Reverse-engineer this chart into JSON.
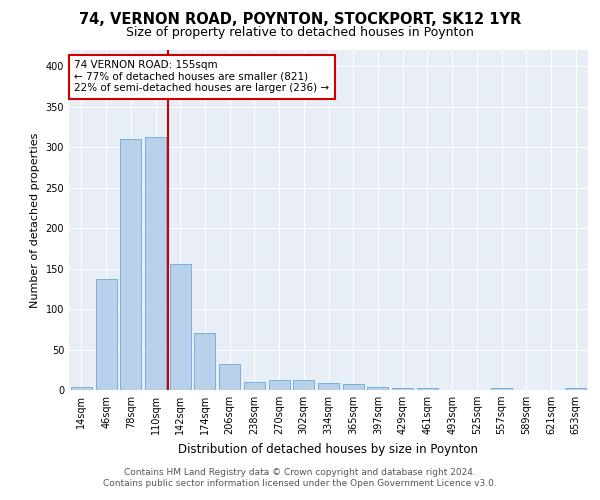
{
  "title1": "74, VERNON ROAD, POYNTON, STOCKPORT, SK12 1YR",
  "title2": "Size of property relative to detached houses in Poynton",
  "xlabel": "Distribution of detached houses by size in Poynton",
  "ylabel": "Number of detached properties",
  "categories": [
    "14sqm",
    "46sqm",
    "78sqm",
    "110sqm",
    "142sqm",
    "174sqm",
    "206sqm",
    "238sqm",
    "270sqm",
    "302sqm",
    "334sqm",
    "365sqm",
    "397sqm",
    "429sqm",
    "461sqm",
    "493sqm",
    "525sqm",
    "557sqm",
    "589sqm",
    "621sqm",
    "653sqm"
  ],
  "values": [
    4,
    137,
    310,
    313,
    156,
    71,
    32,
    10,
    12,
    12,
    9,
    7,
    4,
    3,
    2,
    0,
    0,
    2,
    0,
    0,
    2
  ],
  "bar_color": "#b8d0ea",
  "bar_edge_color": "#6aaad4",
  "highlight_bar_index": 4,
  "highlight_color": "#cc0000",
  "annotation_text": "74 VERNON ROAD: 155sqm\n← 77% of detached houses are smaller (821)\n22% of semi-detached houses are larger (236) →",
  "annotation_box_color": "#ffffff",
  "annotation_box_edge": "#cc0000",
  "footer": "Contains HM Land Registry data © Crown copyright and database right 2024.\nContains public sector information licensed under the Open Government Licence v3.0.",
  "ylim": [
    0,
    420
  ],
  "background_color": "#e8eef6",
  "grid_color": "#ffffff",
  "title1_fontsize": 10.5,
  "title2_fontsize": 9,
  "xlabel_fontsize": 8.5,
  "ylabel_fontsize": 8,
  "tick_fontsize": 7,
  "footer_fontsize": 6.5,
  "annotation_fontsize": 7.5
}
